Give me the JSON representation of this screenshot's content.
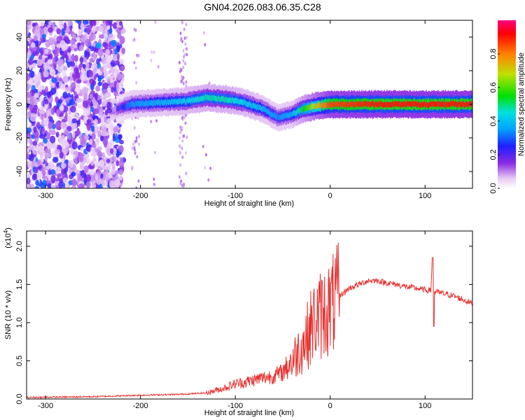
{
  "title": "GN04.2026.083.06.35.C28",
  "chart_data": [
    {
      "type": "heatmap",
      "xlabel": "Height of straight line (km)",
      "ylabel": "Frequency (Hz)",
      "xlim": [
        -320,
        150
      ],
      "ylim": [
        -50,
        50
      ],
      "x_ticks": [
        "-300",
        "-200",
        "-100",
        "0",
        "100"
      ],
      "y_ticks": [
        "-40",
        "-20",
        "0",
        "20",
        "40"
      ],
      "colorbar": {
        "label": "Normalized spectral amplitude",
        "range": [
          0,
          1
        ],
        "ticks": [
          "0.0",
          "0.2",
          "0.4",
          "0.6",
          "0.8"
        ]
      },
      "features": [
        {
          "x_range": [
            -320,
            -218
          ],
          "freq_range": [
            -50,
            50
          ],
          "amplitude": 0.15,
          "description": "noise"
        },
        {
          "x": [
            -225,
            -210,
            -180,
            -150,
            -130,
            -110,
            -90,
            -70,
            -55,
            -40,
            -30,
            -15,
            0,
            50,
            100,
            150
          ],
          "freq": [
            -3,
            0,
            1,
            2,
            4,
            3,
            1,
            -3,
            -8,
            -6,
            -3,
            -1,
            0,
            0,
            0,
            0
          ],
          "amplitude": [
            0.2,
            0.35,
            0.4,
            0.45,
            0.5,
            0.5,
            0.45,
            0.4,
            0.35,
            0.4,
            0.55,
            0.75,
            0.9,
            0.95,
            0.95,
            0.95
          ]
        }
      ]
    },
    {
      "type": "line",
      "xlabel": "Height of straight line (km)",
      "ylabel": "SNR (10 * v/v)",
      "y_multiplier": "(x10",
      "y_multiplier_exp": "4",
      "xlim": [
        -320,
        150
      ],
      "ylim": [
        0,
        2.2
      ],
      "x_ticks": [
        "-300",
        "-200",
        "-100",
        "0",
        "100"
      ],
      "y_ticks": [
        "0.0",
        "0.5",
        "1.0",
        "1.5",
        "2.0"
      ],
      "series": [
        {
          "color": "#e8312f",
          "x": [
            -320,
            -250,
            -200,
            -160,
            -130,
            -110,
            -100,
            -90,
            -80,
            -70,
            -60,
            -50,
            -45,
            -40,
            -35,
            -30,
            -25,
            -20,
            -15,
            -10,
            -5,
            0,
            10,
            20,
            30,
            40,
            50,
            60,
            70,
            80,
            90,
            100,
            106,
            108,
            110,
            112,
            120,
            130,
            140,
            150
          ],
          "y": [
            0.02,
            0.03,
            0.05,
            0.06,
            0.08,
            0.15,
            0.2,
            0.22,
            0.25,
            0.28,
            0.3,
            0.35,
            0.45,
            0.5,
            0.6,
            0.7,
            0.8,
            0.95,
            1.05,
            1.1,
            1.15,
            1.2,
            1.35,
            1.45,
            1.5,
            1.55,
            1.55,
            1.52,
            1.5,
            1.47,
            1.45,
            1.43,
            1.42,
            1.85,
            1.4,
            1.4,
            1.38,
            1.35,
            1.3,
            1.25
          ]
        }
      ]
    }
  ]
}
